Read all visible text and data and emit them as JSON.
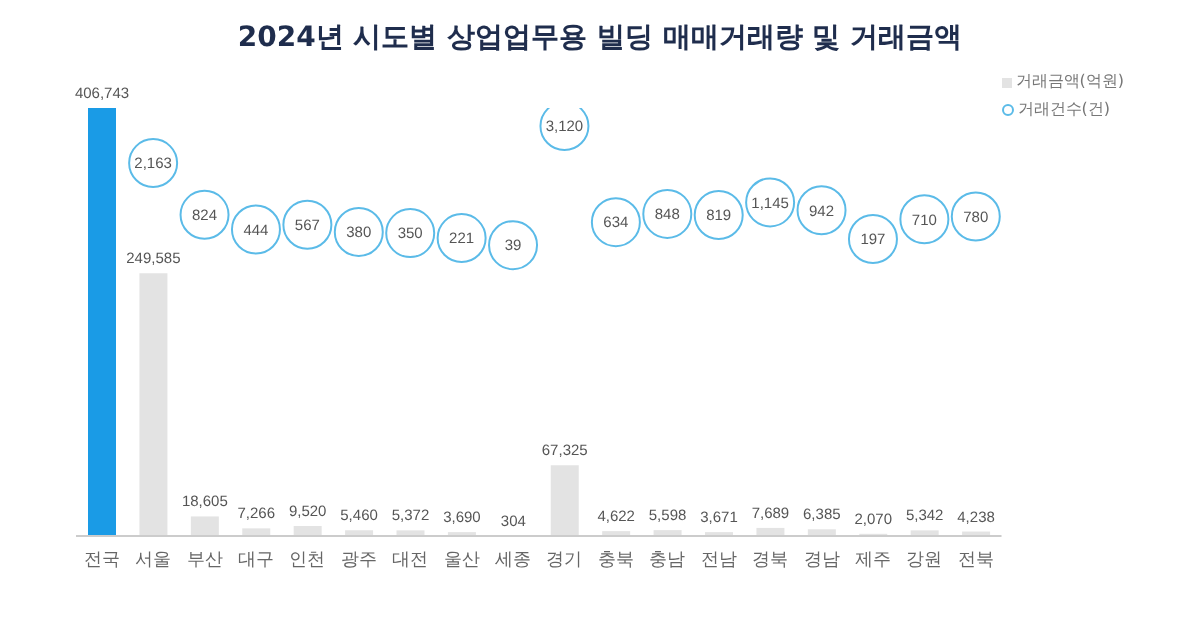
{
  "chart_data": {
    "type": "bar",
    "title": "2024년 시도별 상업업무용 빌딩 매매거래량 및 거래금액",
    "categories": [
      "전국",
      "서울",
      "부산",
      "대구",
      "인천",
      "광주",
      "대전",
      "울산",
      "세종",
      "경기",
      "충북",
      "충남",
      "전남",
      "경북",
      "경남",
      "제주",
      "강원",
      "전북"
    ],
    "series": [
      {
        "name": "거래금액(억원)",
        "type": "bar",
        "color": "#e3e3e3",
        "colors": [
          "#1a9be6",
          "#e3e3e3",
          "#e3e3e3",
          "#e3e3e3",
          "#e3e3e3",
          "#e3e3e3",
          "#e3e3e3",
          "#e3e3e3",
          "#e3e3e3",
          "#e3e3e3",
          "#e3e3e3",
          "#e3e3e3",
          "#e3e3e3",
          "#e3e3e3",
          "#e3e3e3",
          "#e3e3e3",
          "#e3e3e3",
          "#e3e3e3"
        ],
        "values": [
          406743,
          249585,
          18605,
          7266,
          9520,
          5460,
          5372,
          3690,
          304,
          67325,
          4622,
          5598,
          3671,
          7689,
          6385,
          2070,
          5342,
          4238
        ],
        "value_labels": [
          "406,743",
          "249,585",
          "18,605",
          "7,266",
          "9,520",
          "5,460",
          "5,372",
          "3,690",
          "304",
          "67,325",
          "4,622",
          "5,598",
          "3,671",
          "7,689",
          "6,385",
          "2,070",
          "5,342",
          "4,238"
        ]
      },
      {
        "name": "거래건수(건)",
        "type": "scatter",
        "axis": "y2",
        "marker": "circle",
        "color": "#5bbbe8",
        "values": [
          null,
          2163,
          824,
          444,
          567,
          380,
          350,
          221,
          39,
          3120,
          634,
          848,
          819,
          1145,
          942,
          197,
          710,
          780
        ],
        "value_labels": [
          null,
          "2,163",
          "824",
          "444",
          "567",
          "380",
          "350",
          "221",
          "39",
          "3,120",
          "634",
          "848",
          "819",
          "1,145",
          "942",
          "197",
          "710",
          "780"
        ]
      }
    ],
    "legend": "top right"
  }
}
